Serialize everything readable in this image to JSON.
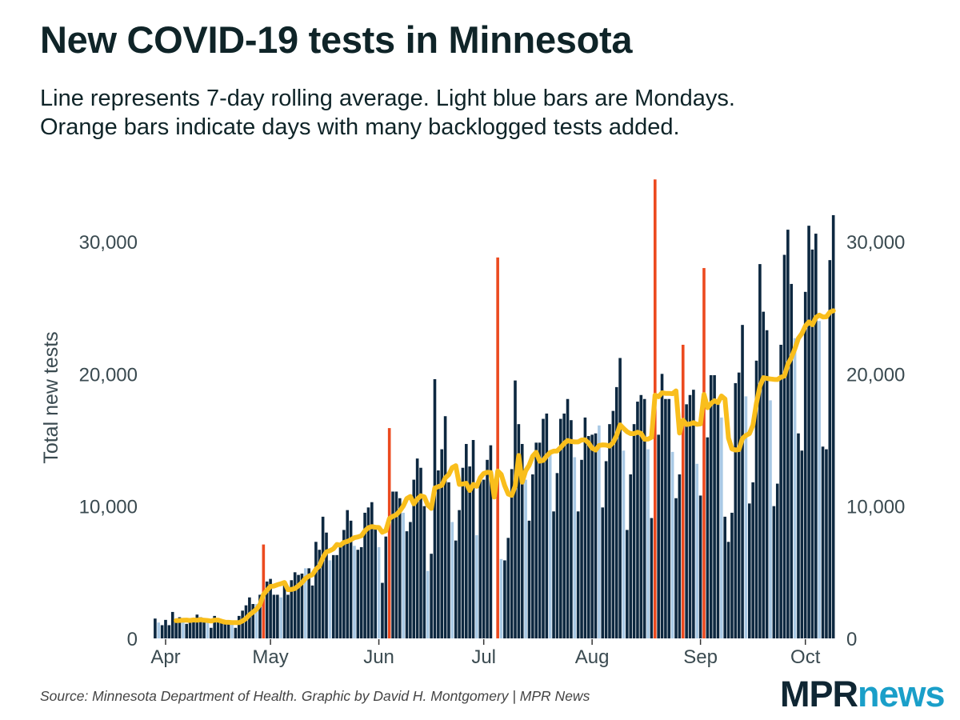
{
  "title": "New COVID-19 tests in Minnesota",
  "subtitle": [
    "Line represents 7-day rolling average. Light blue bars are Mondays.",
    "Orange bars indicate days with many backlogged tests added."
  ],
  "source": "Source: Minnesota Department of Health. Graphic by David H. Montgomery | MPR News",
  "logo": {
    "part1": "MPR",
    "part2": "news"
  },
  "colors": {
    "bar": "#0d2840",
    "monday": "#a9c9e5",
    "backlog": "#ec4a1f",
    "line": "#f9be1c",
    "text": "#3a4a50"
  },
  "chart_data": {
    "type": "bar",
    "title": "New COVID-19 tests in Minnesota",
    "xlabel": "",
    "ylabel": "Total new tests",
    "ylim": [
      0,
      30000
    ],
    "yticks": [
      0,
      10000,
      20000,
      30000
    ],
    "ytick_labels": [
      "0",
      "10,000",
      "20,000",
      "30,000"
    ],
    "xtick_labels": [
      "Apr",
      "May",
      "Jun",
      "Jul",
      "Aug",
      "Sep",
      "Oct"
    ],
    "xtick_dates": [
      "2020-04-01",
      "2020-05-01",
      "2020-06-01",
      "2020-07-01",
      "2020-08-01",
      "2020-09-01",
      "2020-10-01"
    ],
    "start_date": "2020-03-29",
    "end_date": "2020-10-09",
    "backlog_dates": [
      "2020-04-29",
      "2020-06-04",
      "2020-07-05",
      "2020-08-19",
      "2020-08-27",
      "2020-09-02"
    ],
    "line": "7-day rolling average",
    "values": [
      1500,
      1200,
      1000,
      1400,
      1000,
      2000,
      1300,
      1600,
      1300,
      1100,
      1200,
      1300,
      1800,
      1600,
      1300,
      1200,
      800,
      1700,
      1300,
      1200,
      1100,
      1200,
      1100,
      800,
      1700,
      2100,
      2500,
      3100,
      2600,
      2600,
      3300,
      7100,
      4300,
      4500,
      3300,
      3300,
      3100,
      4000,
      3300,
      4400,
      5000,
      4800,
      4900,
      5300,
      5300,
      4000,
      7300,
      6700,
      9200,
      8000,
      5900,
      6300,
      6300,
      6900,
      8200,
      9700,
      8900,
      7000,
      6700,
      6900,
      9500,
      9900,
      10300,
      8500,
      6900,
      4200,
      7700,
      15900,
      11100,
      11100,
      10600,
      9500,
      8100,
      8800,
      12000,
      13600,
      12900,
      10000,
      5100,
      6400,
      19600,
      12700,
      14300,
      16800,
      11800,
      8800,
      7400,
      9700,
      12900,
      14700,
      13000,
      15000,
      7800,
      11900,
      12000,
      13500,
      14600,
      0,
      28800,
      6000,
      5900,
      7600,
      12800,
      19500,
      16200,
      14700,
      12000,
      8900,
      12400,
      14800,
      14800,
      16600,
      17000,
      13900,
      9600,
      12500,
      16600,
      17000,
      18100,
      16500,
      13700,
      9600,
      13500,
      16700,
      15300,
      15400,
      15500,
      16100,
      9900,
      13400,
      16200,
      17200,
      19000,
      21200,
      14200,
      8200,
      12400,
      16200,
      17900,
      18400,
      18100,
      14300,
      9100,
      34700,
      15400,
      20000,
      18100,
      18100,
      14100,
      10600,
      12400,
      22200,
      17700,
      18400,
      18800,
      13200,
      10800,
      28000,
      15200,
      19900,
      19900,
      17800,
      16700,
      9200,
      7300,
      9500,
      19300,
      20100,
      23700,
      18300,
      10200,
      11800,
      21000,
      28300,
      24700,
      23300,
      18000,
      10000,
      11700,
      22200,
      29000,
      30900,
      26800,
      22700,
      15500,
      14200,
      26200,
      31200,
      29400,
      30600,
      24000,
      14500,
      14300,
      28600,
      32000
    ]
  }
}
